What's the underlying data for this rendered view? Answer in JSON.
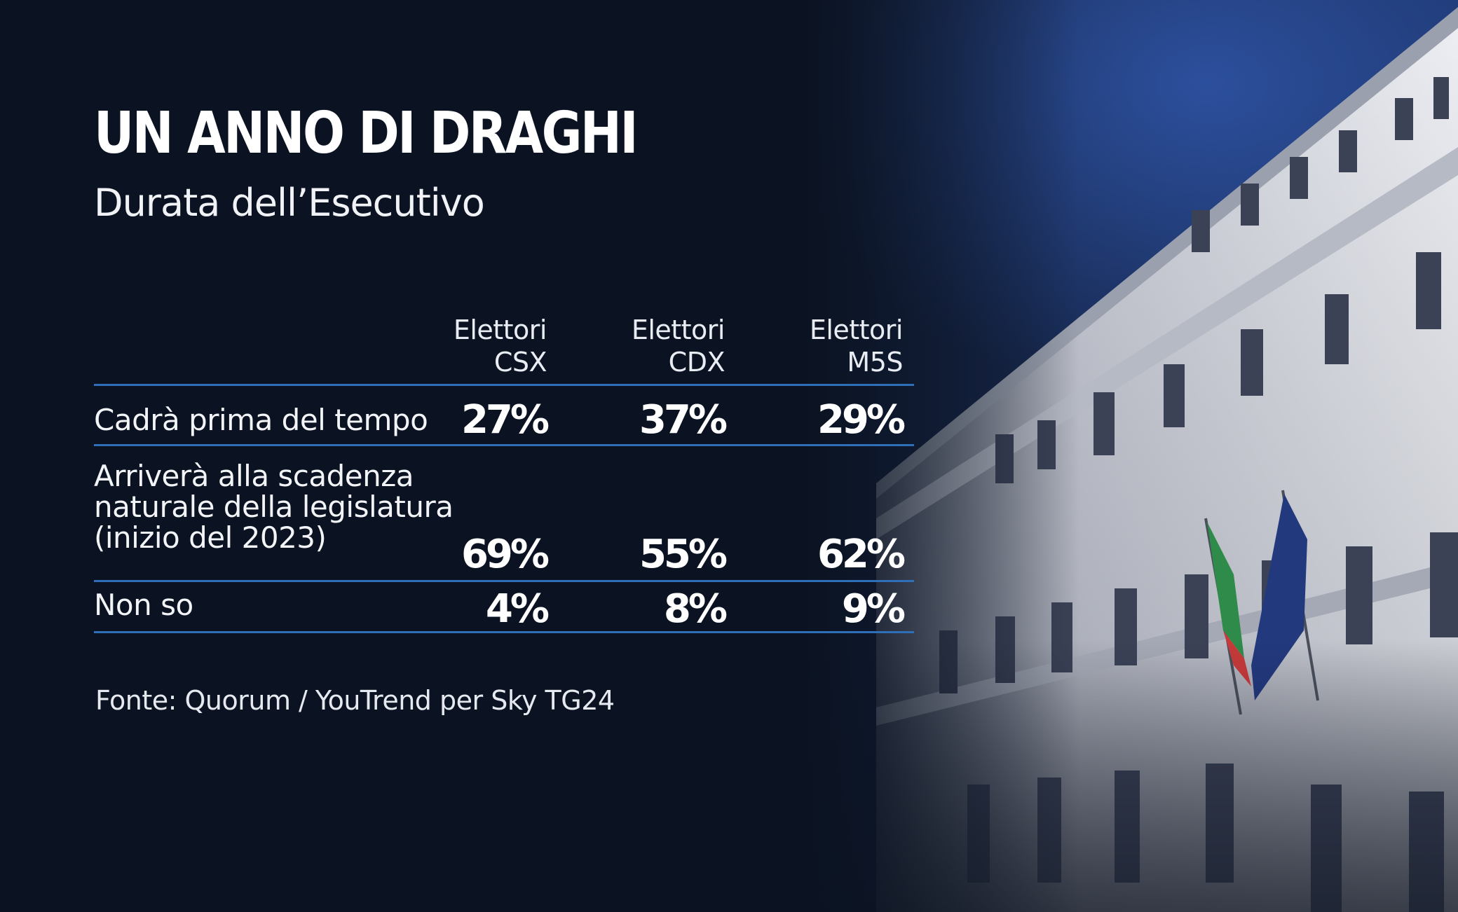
{
  "title": "UN ANNO DI DRAGHI",
  "subtitle": "Durata dell’Esecutivo",
  "source": "Fonte: Quorum / YouTrend per Sky TG24",
  "colors": {
    "rule": "#2f6fb8",
    "background": "#0c1424",
    "text": "#ffffff"
  },
  "chart_data": {
    "type": "table",
    "columns": [
      {
        "line1": "Elettori",
        "line2": "CSX"
      },
      {
        "line1": "Elettori",
        "line2": "CDX"
      },
      {
        "line1": "Elettori",
        "line2": "M5S"
      }
    ],
    "rows": [
      {
        "label": "Cadrà prima del tempo",
        "values": [
          "27%",
          "37%",
          "29%"
        ]
      },
      {
        "label": "Arriverà alla scadenza\nnaturale della legislatura\n(inizio del 2023)",
        "values": [
          "69%",
          "55%",
          "62%"
        ]
      },
      {
        "label": "Non so",
        "values": [
          "4%",
          "8%",
          "9%"
        ]
      }
    ]
  }
}
